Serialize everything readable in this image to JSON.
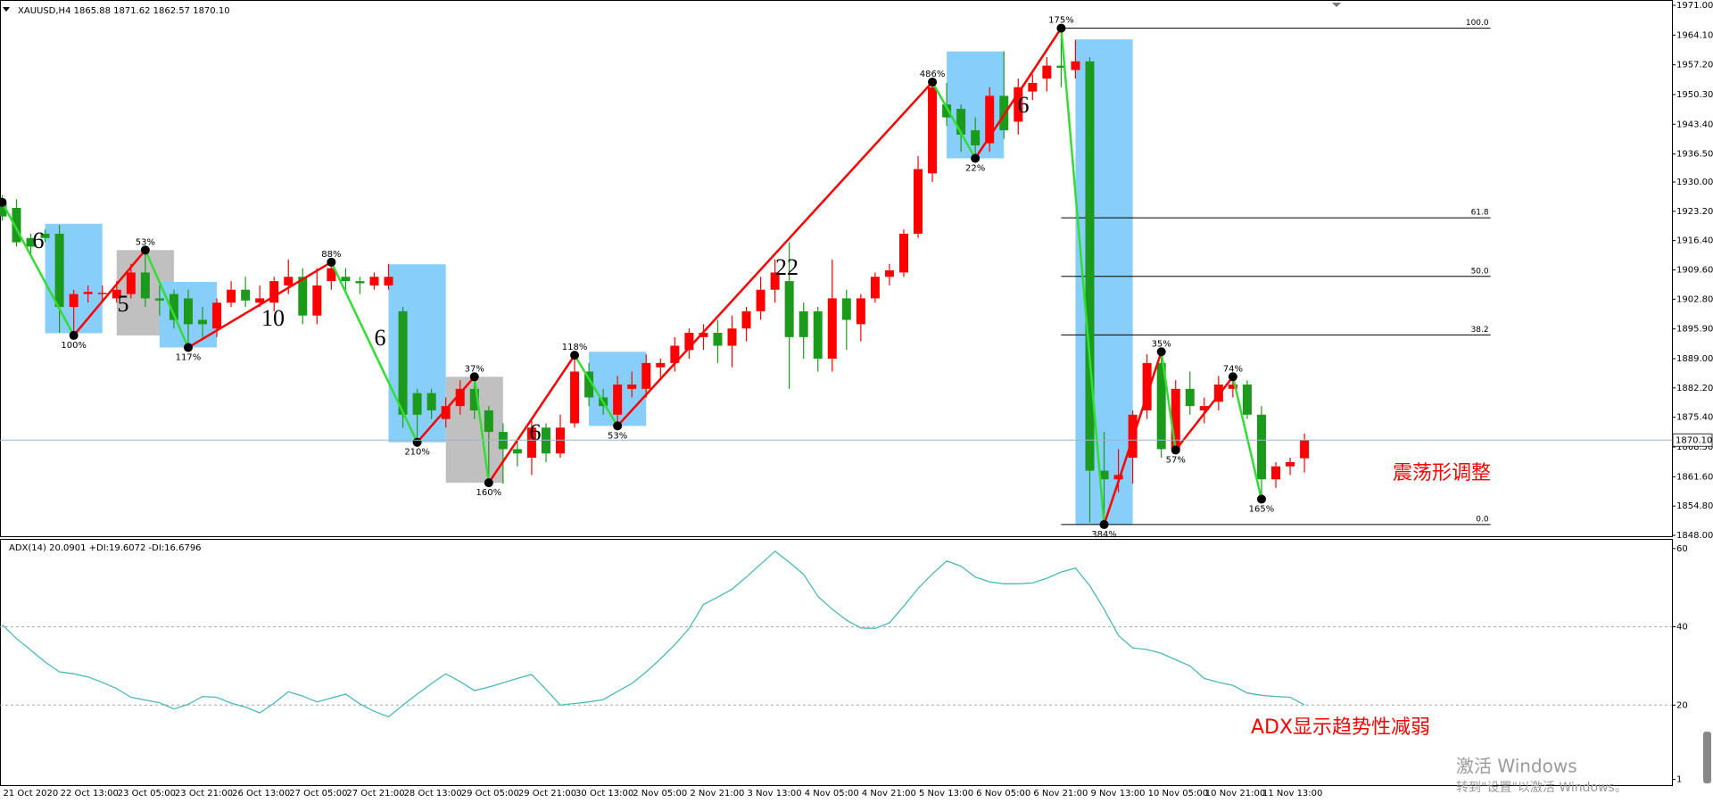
{
  "chart_data": [
    {
      "type": "candlestick",
      "title": "XAUUSD,H4  1865.88 1871.62 1862.57 1870.10",
      "categories": [
        "21 Oct 2020",
        null,
        null,
        null,
        "22 Oct 13:00",
        null,
        null,
        null,
        "23 Oct 05:00",
        null,
        null,
        null,
        "23 Oct 21:00",
        null,
        null,
        null,
        "26 Oct 13:00",
        null,
        null,
        null,
        "27 Oct 05:00",
        null,
        null,
        null,
        "27 Oct 21:00",
        null,
        null,
        null,
        "28 Oct 13:00",
        null,
        null,
        null,
        "29 Oct 05:00",
        null,
        null,
        null,
        "29 Oct 21:00",
        null,
        null,
        null,
        "30 Oct 13:00",
        null,
        null,
        null,
        "2 Nov 05:00",
        null,
        null,
        null,
        "2 Nov 21:00",
        null,
        null,
        null,
        "3 Nov 13:00",
        null,
        null,
        null,
        "4 Nov 05:00",
        null,
        null,
        null,
        "4 Nov 21:00",
        null,
        null,
        null,
        "5 Nov 13:00",
        null,
        null,
        null,
        "6 Nov 05:00",
        null,
        null,
        null,
        "6 Nov 21:00",
        null,
        null,
        null,
        "9 Nov 13:00",
        null,
        null,
        null,
        "10 Nov 05:00",
        null,
        null,
        null,
        "10 Nov 21:00",
        null,
        null,
        null,
        "11 Nov 13:00",
        null,
        null,
        null
      ],
      "open": [
        1925,
        1924,
        1917,
        1918,
        1918,
        1901,
        1904,
        1904,
        1903,
        1904,
        1909,
        1903,
        1904,
        1903,
        1898,
        1896,
        1902,
        1905,
        1902,
        1902,
        1906,
        1908,
        1899,
        1907,
        1908,
        1907,
        1906,
        1906,
        1900,
        1881,
        1881,
        1875,
        1878,
        1882,
        1877,
        1872,
        1868,
        1866,
        1873,
        1867,
        1874,
        1886,
        1880,
        1876,
        1882,
        1882,
        1887,
        1888,
        1891,
        1894,
        1895,
        1892,
        1896,
        1900,
        1905,
        1907,
        1900,
        1900,
        1889,
        1903,
        1897,
        1903,
        1908,
        1909,
        1918,
        1932,
        1948,
        1947,
        1942,
        1939,
        1950,
        1944,
        1951,
        1954,
        1957,
        1956,
        1958,
        1863,
        1861,
        1866,
        1877,
        1888,
        1868,
        1882,
        1877,
        1879,
        1882,
        1883,
        1876,
        1861,
        1864,
        1865.88
      ],
      "high": [
        1927,
        1926,
        1918,
        1919,
        1920,
        1905,
        1906,
        1906,
        1907,
        1911,
        1914.2,
        1906,
        1905,
        1905,
        1901,
        1903,
        1907,
        1908,
        1906,
        1908,
        1912,
        1910,
        1910,
        1911.4,
        1910,
        1908,
        1909,
        1911,
        1901,
        1882,
        1882,
        1880,
        1884,
        1884.8,
        1878,
        1874,
        1870,
        1875,
        1874,
        1876,
        1889.8,
        1888,
        1882,
        1885,
        1886,
        1890,
        1889,
        1894,
        1896,
        1897,
        1898,
        1899,
        1901,
        1908,
        1912,
        1916,
        1902,
        1901,
        1912,
        1905,
        1904,
        1909,
        1911,
        1919,
        1936,
        1953.2,
        1953,
        1948,
        1945,
        1952,
        1960.3,
        1954,
        1955,
        1959,
        1965.7,
        1963,
        1959,
        1872,
        1868,
        1877,
        1890,
        1890.6,
        1884,
        1886,
        1880,
        1885,
        1884.8,
        1884,
        1878,
        1865,
        1866,
        1871.62
      ],
      "low": [
        1921,
        1915,
        1913,
        1916,
        1895,
        1894.4,
        1902,
        1902,
        1902,
        1903,
        1901,
        1899,
        1896,
        1891.6,
        1894,
        1894,
        1901,
        1901,
        1901,
        1900,
        1904,
        1897,
        1897,
        1905,
        1905,
        1904,
        1905,
        1905,
        1873,
        1869.6,
        1875,
        1873,
        1876,
        1875,
        1860.2,
        1860,
        1864,
        1862,
        1865,
        1866,
        1873,
        1878,
        1876,
        1873.4,
        1880,
        1880,
        1884,
        1886,
        1889,
        1891,
        1888,
        1887,
        1893,
        1898,
        1902,
        1882,
        1889,
        1886,
        1886,
        1891,
        1893,
        1902,
        1906,
        1908,
        1917,
        1930,
        1943,
        1937,
        1935.5,
        1937,
        1940,
        1941,
        1949,
        1951,
        1952,
        1954,
        1851,
        1850.5,
        1858,
        1860,
        1875,
        1866,
        1867.8,
        1876,
        1874,
        1877,
        1880,
        1875,
        1856.4,
        1859,
        1862,
        1862.57
      ],
      "close": [
        1922,
        1916,
        1915,
        1917,
        1901,
        1904,
        1904.5,
        1904.3,
        1905,
        1909,
        1903,
        1902.5,
        1898,
        1897,
        1897,
        1902,
        1905,
        1902.5,
        1903,
        1907,
        1908,
        1899,
        1906,
        1910,
        1907,
        1906.5,
        1908,
        1908,
        1876,
        1876,
        1877,
        1878,
        1882,
        1877,
        1872,
        1868,
        1867,
        1873,
        1867,
        1873,
        1886,
        1880,
        1878,
        1883,
        1883,
        1888,
        1888,
        1892,
        1895,
        1895,
        1892,
        1896,
        1900,
        1905,
        1909,
        1894,
        1894,
        1889,
        1903,
        1898,
        1903,
        1908,
        1909.5,
        1918,
        1933,
        1952,
        1945,
        1941,
        1938.5,
        1950,
        1942,
        1952,
        1953,
        1957,
        1956.5,
        1958,
        1863,
        1861,
        1862,
        1876,
        1888,
        1868,
        1882,
        1878,
        1878,
        1883,
        1883,
        1876,
        1861,
        1864,
        1865,
        1870.1
      ],
      "up_color": "#ff0000",
      "down_color": "#1c9a1c",
      "ylim": [
        1848,
        1971
      ],
      "yticks": [
        {
          "value": 1971,
          "label": "1971.00"
        },
        {
          "value": 1964.1,
          "label": "1964.10"
        },
        {
          "value": 1957.2,
          "label": "1957.20"
        },
        {
          "value": 1950.3,
          "label": "1950.30"
        },
        {
          "value": 1943.4,
          "label": "1943.40"
        },
        {
          "value": 1936.5,
          "label": "1936.50"
        },
        {
          "value": 1930,
          "label": "1930.00"
        },
        {
          "value": 1923.2,
          "label": "1923.20"
        },
        {
          "value": 1916.4,
          "label": "1916.40"
        },
        {
          "value": 1909.6,
          "label": "1909.60"
        },
        {
          "value": 1902.8,
          "label": "1902.80"
        },
        {
          "value": 1895.9,
          "label": "1895.90"
        },
        {
          "value": 1889,
          "label": "1889.00"
        },
        {
          "value": 1882.2,
          "label": "1882.20"
        },
        {
          "value": 1875.4,
          "label": "1875.40"
        },
        {
          "value": 1868.5,
          "label": "1868.50"
        },
        {
          "value": 1861.6,
          "label": "1861.60"
        },
        {
          "value": 1854.8,
          "label": "1854.80"
        },
        {
          "value": 1848,
          "label": "1848.00"
        }
      ],
      "last_price": {
        "value": 1870.1,
        "label": "1870.10"
      },
      "zigzag": {
        "x": [
          0,
          5,
          10,
          13,
          23,
          29,
          33,
          34,
          40,
          43,
          65,
          68,
          74,
          77,
          81,
          82,
          86,
          88
        ],
        "values": [
          1925.3,
          1894.4,
          1914.2,
          1891.6,
          1911.4,
          1869.6,
          1884.8,
          1860.2,
          1889.8,
          1873.4,
          1953.2,
          1935.5,
          1965.7,
          1850.5,
          1890.6,
          1867.8,
          1884.8,
          1856.4
        ],
        "labels": [
          null,
          "100%",
          "53%",
          "117%",
          "88%",
          "210%",
          "37%",
          "160%",
          "118%",
          "53%",
          "486%",
          "22%",
          "175%",
          "384%",
          "35%",
          "57%",
          "74%",
          "165%"
        ],
        "up_color": "#ff0000",
        "down_color": "#33dd33"
      },
      "zones": [
        {
          "from": 3,
          "to": 7,
          "high": 1920.3,
          "low": 1894.9,
          "color": "#87cefa"
        },
        {
          "from": 8,
          "to": 12,
          "high": 1914.2,
          "low": 1894.4,
          "color": "#c0c0c0"
        },
        {
          "from": 11,
          "to": 15,
          "high": 1906.8,
          "low": 1891.6,
          "color": "#87cefa"
        },
        {
          "from": 27,
          "to": 31,
          "high": 1910.9,
          "low": 1869.6,
          "color": "#87cefa"
        },
        {
          "from": 31,
          "to": 35,
          "high": 1884.8,
          "low": 1860.2,
          "color": "#c0c0c0"
        },
        {
          "from": 41,
          "to": 45,
          "high": 1890.6,
          "low": 1873.4,
          "color": "#87cefa"
        },
        {
          "from": 66,
          "to": 70,
          "high": 1960.3,
          "low": 1935.5,
          "color": "#87cefa"
        },
        {
          "from": 75,
          "to": 79,
          "high": 1963.1,
          "low": 1850.5,
          "color": "#87cefa"
        }
      ],
      "fib": {
        "from": 74,
        "to": 104,
        "high": 1965.7,
        "low": 1850.5,
        "levels": [
          {
            "value": 100,
            "label": "100.0"
          },
          61.8,
          {
            "value": 50,
            "label": "50.0"
          },
          38.2,
          {
            "value": 0,
            "label": "0.0"
          }
        ]
      },
      "wave_counts": [
        6,
        5,
        10,
        6,
        6,
        22,
        6
      ],
      "note": "震荡形调整"
    },
    {
      "type": "line",
      "title": "ADX(14) 20.0901 +DI:19.6072 -DI:16.6796",
      "color": "#4cb8b8",
      "values": [
        40.5,
        37,
        34,
        31,
        28.5,
        28,
        27.2,
        25.8,
        24.2,
        22,
        21.3,
        20.6,
        19,
        20.2,
        22.2,
        22,
        20.5,
        19.5,
        18,
        20.5,
        23.4,
        22.3,
        20.8,
        21.8,
        22.8,
        20.3,
        18.4,
        17,
        20,
        22.8,
        25.5,
        28,
        26,
        23.7,
        24.6,
        25.7,
        26.8,
        27.8,
        24,
        20,
        20.4,
        20.8,
        21.4,
        23.5,
        25.5,
        28.5,
        31.8,
        35.4,
        39.6,
        45.7,
        47.6,
        49.6,
        52.7,
        56,
        59.3,
        56.5,
        53.4,
        47.8,
        44.5,
        41.7,
        39.7,
        39.6,
        41,
        45.3,
        49.8,
        53.5,
        56.8,
        55.5,
        52.7,
        51.5,
        51,
        51,
        51.2,
        52.4,
        54,
        55,
        50.5,
        44.5,
        37.8,
        34.6,
        34.2,
        33.2,
        31.6,
        30,
        26.8,
        25.8,
        25,
        23.1,
        22.5,
        22.2,
        22,
        20.0901
      ],
      "ylim": [
        0,
        62
      ],
      "yticks": [
        1,
        20,
        40,
        60
      ],
      "grid_levels": [
        20,
        40
      ],
      "note": "ADX显示趋势性减弱"
    }
  ],
  "watermark": {
    "title": "激活 Windows",
    "subtitle": "转到\"设置\"以激活 Windows。"
  }
}
